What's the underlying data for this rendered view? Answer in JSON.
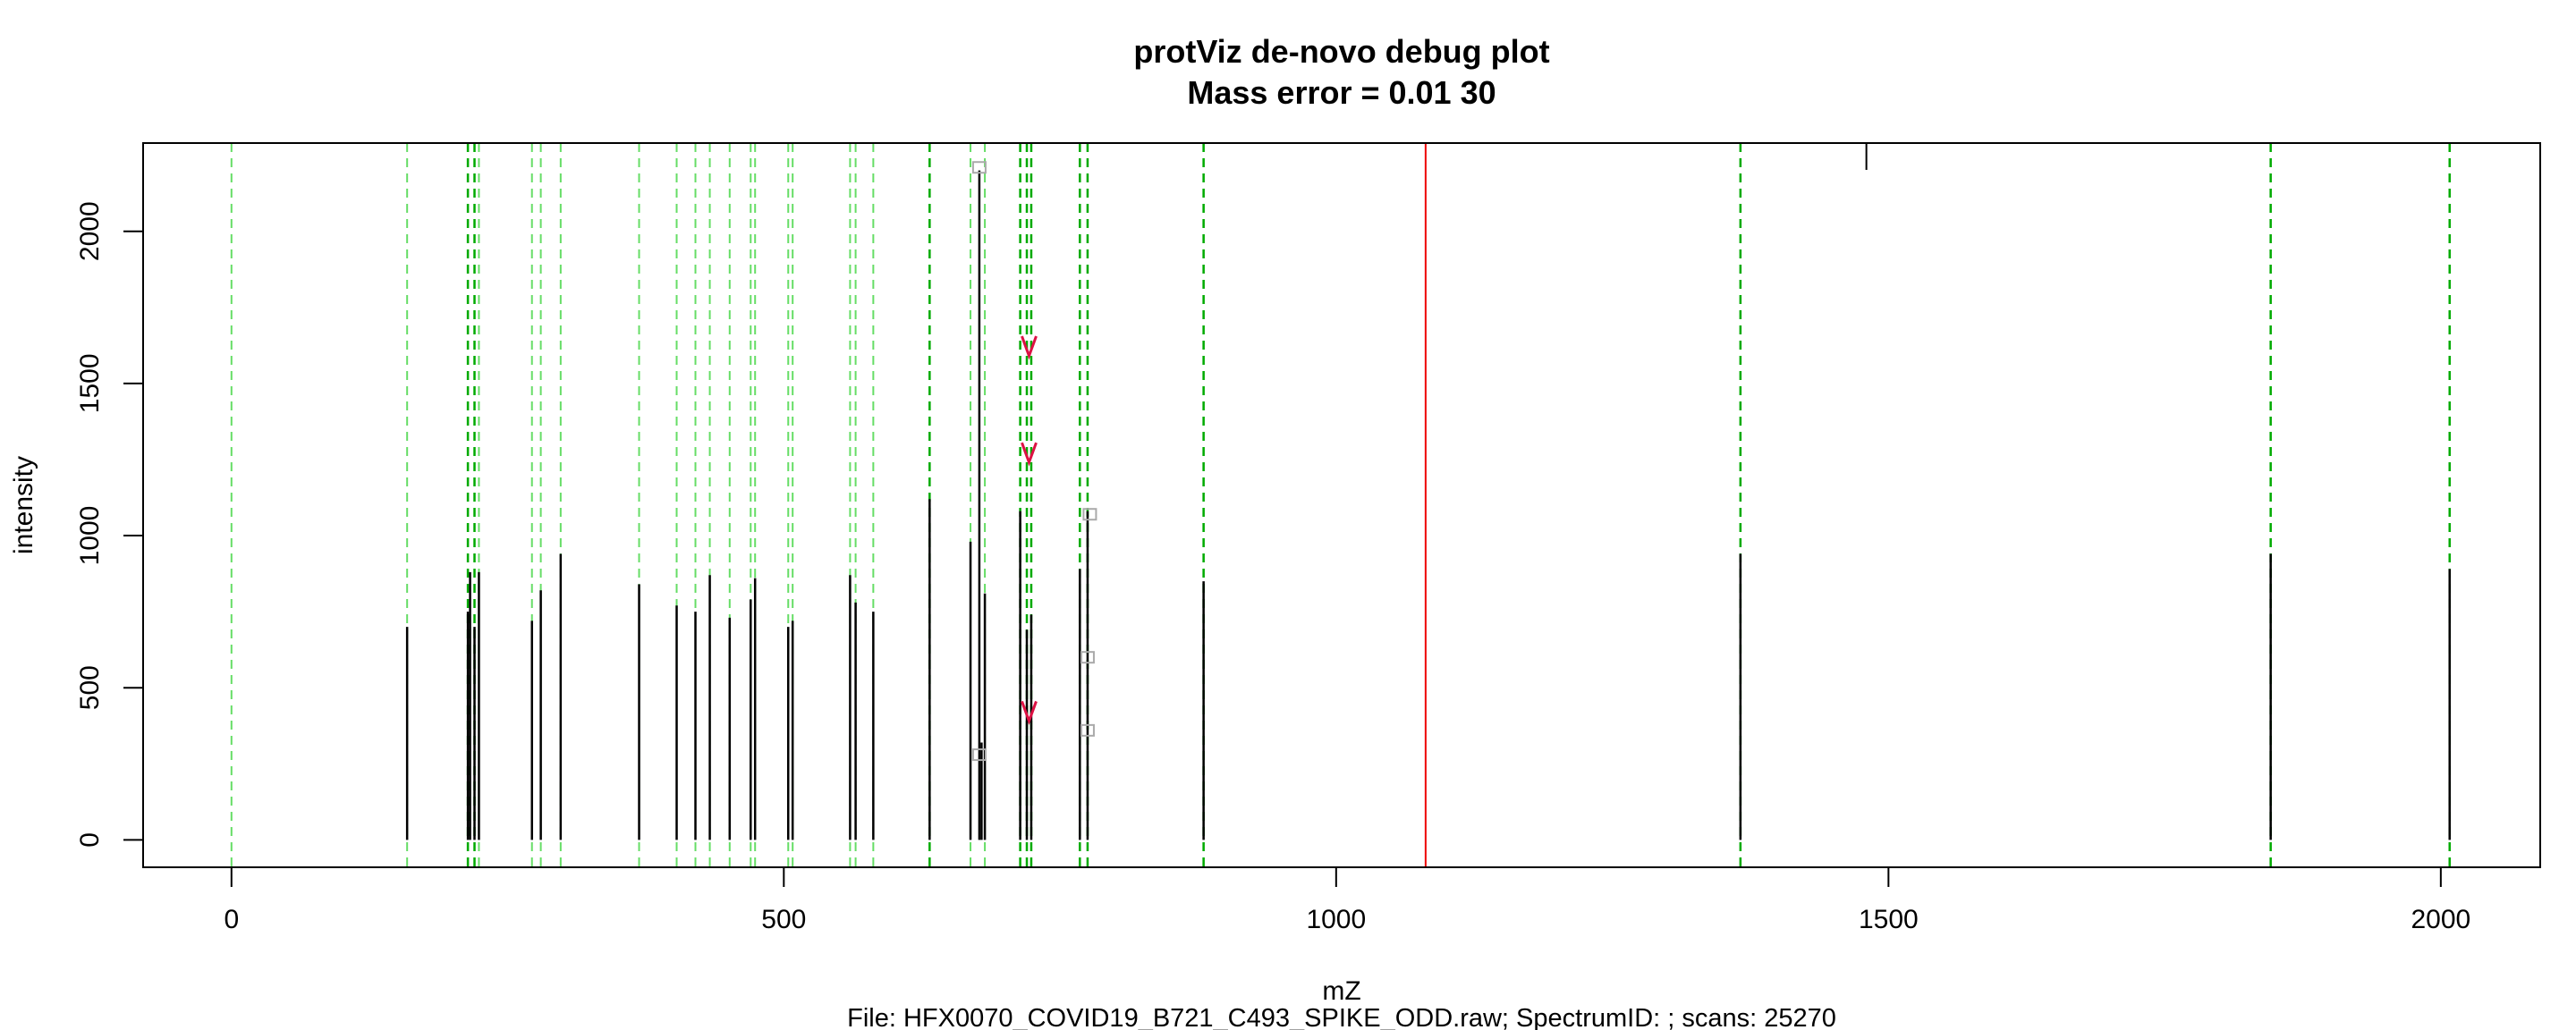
{
  "chart_data": {
    "type": "bar",
    "title": "protViz de-novo debug plot",
    "subtitle": "Mass error = 0.01 30",
    "xlabel": "mZ",
    "ylabel": "intensity",
    "caption": "File: HFX0070_COVID19_B721_C493_SPIKE_ODD.raw; SpectrumID: ; scans: 25270",
    "xlim": [
      -80,
      2090
    ],
    "ylim": [
      -90,
      2290
    ],
    "x_ticks": [
      {
        "value": 0,
        "label": "0"
      },
      {
        "value": 500,
        "label": "500"
      },
      {
        "value": 1000,
        "label": "1000"
      },
      {
        "value": 1500,
        "label": "1500"
      },
      {
        "value": 2000,
        "label": "2000"
      }
    ],
    "y_ticks": [
      {
        "value": 0,
        "label": "0"
      },
      {
        "value": 500,
        "label": "500"
      },
      {
        "value": 1000,
        "label": "1000"
      },
      {
        "value": 1500,
        "label": "1500"
      },
      {
        "value": 2000,
        "label": "2000"
      }
    ],
    "peaks": [
      {
        "mz": 159,
        "intensity": 700
      },
      {
        "mz": 214,
        "intensity": 750
      },
      {
        "mz": 216,
        "intensity": 880
      },
      {
        "mz": 220,
        "intensity": 700
      },
      {
        "mz": 224,
        "intensity": 880
      },
      {
        "mz": 272,
        "intensity": 720
      },
      {
        "mz": 280,
        "intensity": 820
      },
      {
        "mz": 298,
        "intensity": 940
      },
      {
        "mz": 369,
        "intensity": 840
      },
      {
        "mz": 403,
        "intensity": 770
      },
      {
        "mz": 420,
        "intensity": 750
      },
      {
        "mz": 433,
        "intensity": 870
      },
      {
        "mz": 451,
        "intensity": 730
      },
      {
        "mz": 470,
        "intensity": 790
      },
      {
        "mz": 474,
        "intensity": 860
      },
      {
        "mz": 504,
        "intensity": 700
      },
      {
        "mz": 508,
        "intensity": 720
      },
      {
        "mz": 560,
        "intensity": 870
      },
      {
        "mz": 565,
        "intensity": 780
      },
      {
        "mz": 581,
        "intensity": 750
      },
      {
        "mz": 632,
        "intensity": 1120
      },
      {
        "mz": 669,
        "intensity": 980
      },
      {
        "mz": 677,
        "intensity": 2200
      },
      {
        "mz": 679,
        "intensity": 320
      },
      {
        "mz": 682,
        "intensity": 810
      },
      {
        "mz": 714,
        "intensity": 1080
      },
      {
        "mz": 720,
        "intensity": 690
      },
      {
        "mz": 724,
        "intensity": 740
      },
      {
        "mz": 768,
        "intensity": 890
      },
      {
        "mz": 775,
        "intensity": 1080
      },
      {
        "mz": 880,
        "intensity": 850
      },
      {
        "mz": 1366,
        "intensity": 940
      },
      {
        "mz": 1846,
        "intensity": 940
      },
      {
        "mz": 2008,
        "intensity": 890
      }
    ],
    "fragment_lines_light": [
      0,
      159,
      214,
      220,
      224,
      272,
      280,
      298,
      369,
      403,
      420,
      433,
      451,
      470,
      474,
      504,
      508,
      560,
      565,
      581,
      632,
      669,
      682,
      714,
      720,
      724,
      768,
      775,
      880
    ],
    "fragment_lines_dark": [
      214,
      220,
      632,
      714,
      720,
      724,
      768,
      775,
      880,
      1366,
      1846,
      2008
    ],
    "precursor_line": {
      "mz": 1081,
      "color": "#ee0000"
    },
    "top_tick_mz": 1480,
    "markers": [
      {
        "mz": 722,
        "intensity": 1620
      },
      {
        "mz": 722,
        "intensity": 1270
      },
      {
        "mz": 722,
        "intensity": 420
      }
    ],
    "gray_labels": [
      {
        "mz": 677,
        "intensity": 2210
      },
      {
        "mz": 677,
        "intensity": 280
      },
      {
        "mz": 777,
        "intensity": 1070
      },
      {
        "mz": 775,
        "intensity": 600
      },
      {
        "mz": 775,
        "intensity": 360
      }
    ],
    "colors": {
      "peak": "#000000",
      "light_green": "#66dd66",
      "dark_green": "#00aa00",
      "marker": "#dd1144",
      "gray_label": "#aaaaaa"
    }
  }
}
